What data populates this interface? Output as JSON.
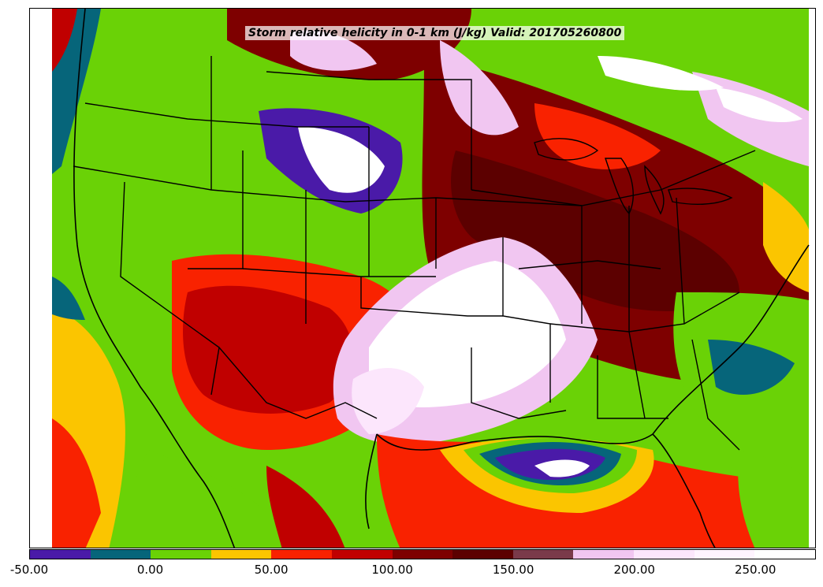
{
  "title": "Storm relative helicity in 0-1 km (J/kg) Valid: 201705260800",
  "colorbar": {
    "levels": [
      -50,
      -25,
      0,
      25,
      50,
      75,
      100,
      125,
      150,
      175,
      200,
      225,
      250,
      275
    ],
    "colors": [
      "#4a1aa8",
      "#06657a",
      "#6ad206",
      "#fbc500",
      "#f92200",
      "#c00000",
      "#7e0000",
      "#5c0000",
      "#7a3a4a",
      "#f1c6f1",
      "#fce6fc",
      "#fff4ff",
      "#ffffff"
    ],
    "tick_labels": [
      "-50.00",
      "0.00",
      "50.00",
      "100.00",
      "150.00",
      "200.00",
      "250.00"
    ],
    "tick_values": [
      -50,
      0,
      50,
      100,
      150,
      200,
      250
    ]
  },
  "colors": {
    "purple": "#4a1aa8",
    "teal": "#06657a",
    "green": "#6ad206",
    "yellow": "#fbc500",
    "red": "#f92200",
    "darkred": "#c00000",
    "maroon": "#7e0000",
    "darkmaroon": "#5c0000",
    "mauve": "#7a3a4a",
    "pink": "#f1c6f1",
    "lightpink": "#fce6fc",
    "white": "#ffffff"
  }
}
